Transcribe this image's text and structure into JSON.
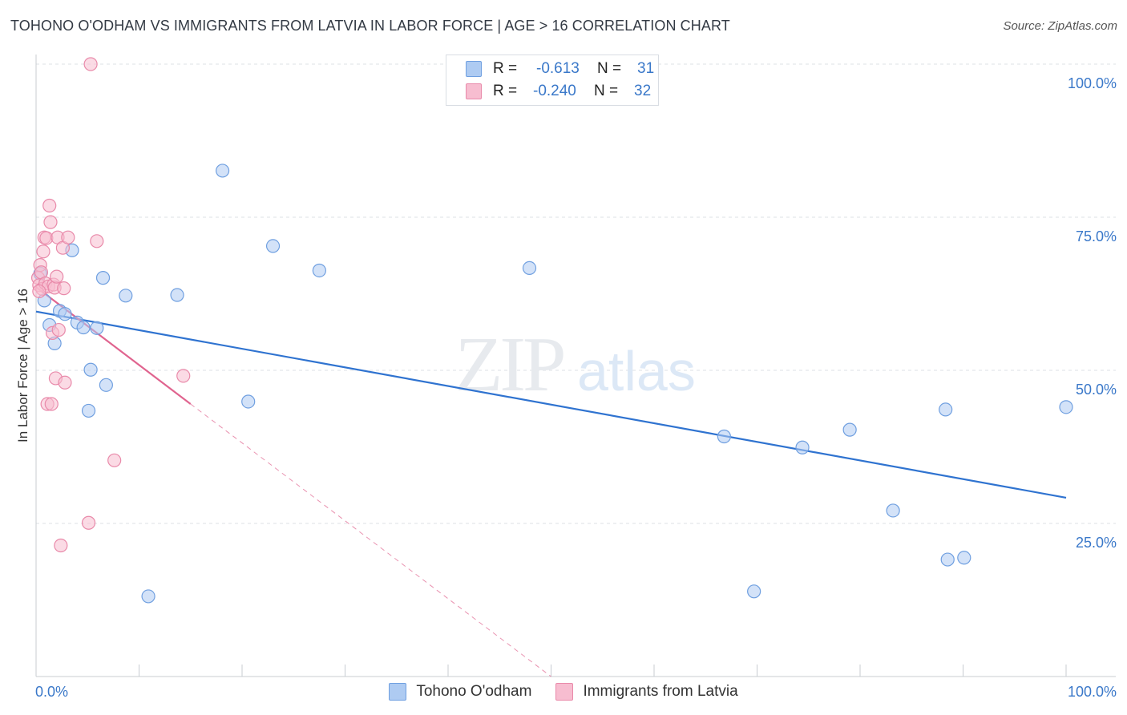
{
  "header": {
    "title": "TOHONO O'ODHAM VS IMMIGRANTS FROM LATVIA IN LABOR FORCE | AGE > 16 CORRELATION CHART",
    "source": "Source: ZipAtlas.com"
  },
  "legend": {
    "r_label": "R =",
    "n_label": "N =",
    "rows": [
      {
        "r": "-0.613",
        "n": "31"
      },
      {
        "r": "-0.240",
        "n": "32"
      }
    ]
  },
  "watermark": {
    "zip": "ZIP",
    "atlas": "atlas"
  },
  "colors": {
    "blue_fill": "#aecbf2",
    "blue_stroke": "#6f9fe0",
    "blue_line": "#2f73d0",
    "pink_fill": "#f7bdd0",
    "pink_stroke": "#e98aaa",
    "pink_line": "#e0648f",
    "grid": "#dde1e6",
    "axis_text": "#3a78c9"
  },
  "chart_data": {
    "type": "scatter",
    "title": "TOHONO O'ODHAM VS IMMIGRANTS FROM LATVIA IN LABOR FORCE | AGE > 16 CORRELATION CHART",
    "xlabel": "",
    "ylabel": "In Labor Force | Age > 16",
    "xlim": [
      0,
      100
    ],
    "ylim": [
      0,
      102
    ],
    "x_tick_labels": [
      {
        "value": 0,
        "label": "0.0%"
      },
      {
        "value": 100,
        "label": "100.0%"
      }
    ],
    "y_tick_labels": [
      {
        "value": 25,
        "label": "25.0%"
      },
      {
        "value": 50,
        "label": "50.0%"
      },
      {
        "value": 75,
        "label": "75.0%"
      },
      {
        "value": 100,
        "label": "100.0%"
      }
    ],
    "grid": true,
    "series": [
      {
        "name": "Tohono O'odham",
        "color": "#aecbf2",
        "trend": {
          "x": [
            0,
            100
          ],
          "y": [
            59.6,
            29.2
          ],
          "style": "solid"
        },
        "points": [
          [
            0.8,
            61.4
          ],
          [
            1.3,
            57.4
          ],
          [
            1.8,
            54.4
          ],
          [
            2.3,
            59.7
          ],
          [
            2.8,
            59.2
          ],
          [
            3.5,
            69.6
          ],
          [
            4.0,
            57.8
          ],
          [
            4.6,
            57.0
          ],
          [
            5.1,
            43.4
          ],
          [
            5.3,
            50.1
          ],
          [
            5.9,
            56.9
          ],
          [
            6.5,
            65.1
          ],
          [
            6.8,
            47.6
          ],
          [
            8.7,
            62.2
          ],
          [
            10.9,
            13.1
          ],
          [
            13.7,
            62.3
          ],
          [
            18.1,
            82.6
          ],
          [
            20.6,
            44.9
          ],
          [
            23.0,
            70.3
          ],
          [
            27.5,
            66.3
          ],
          [
            47.9,
            66.7
          ],
          [
            66.8,
            39.2
          ],
          [
            69.7,
            13.9
          ],
          [
            74.4,
            37.4
          ],
          [
            79.0,
            40.3
          ],
          [
            83.2,
            27.1
          ],
          [
            88.3,
            43.6
          ],
          [
            88.5,
            19.1
          ],
          [
            90.1,
            19.4
          ],
          [
            100.0,
            44.0
          ],
          [
            0.4,
            65.8
          ]
        ]
      },
      {
        "name": "Immigrants from Latvia",
        "color": "#f7bdd0",
        "trend": {
          "x": [
            0,
            15
          ],
          "y": [
            63.6,
            44.5
          ],
          "dashed_to": [
            50.0,
            0
          ],
          "style": "solid-then-dashed"
        },
        "points": [
          [
            0.2,
            65.1
          ],
          [
            0.3,
            63.9
          ],
          [
            0.4,
            67.2
          ],
          [
            0.5,
            66.0
          ],
          [
            0.6,
            63.3
          ],
          [
            0.7,
            69.4
          ],
          [
            0.8,
            71.7
          ],
          [
            0.9,
            64.2
          ],
          [
            1.0,
            71.6
          ],
          [
            1.1,
            44.5
          ],
          [
            1.2,
            63.7
          ],
          [
            1.3,
            76.9
          ],
          [
            1.4,
            74.2
          ],
          [
            1.5,
            44.5
          ],
          [
            1.6,
            56.1
          ],
          [
            1.7,
            64.0
          ],
          [
            1.8,
            63.5
          ],
          [
            1.9,
            48.7
          ],
          [
            2.0,
            65.3
          ],
          [
            2.1,
            71.7
          ],
          [
            2.2,
            56.6
          ],
          [
            2.4,
            21.4
          ],
          [
            2.6,
            70.0
          ],
          [
            2.7,
            63.4
          ],
          [
            2.8,
            48.0
          ],
          [
            3.1,
            71.7
          ],
          [
            5.1,
            25.1
          ],
          [
            5.3,
            100.0
          ],
          [
            5.9,
            71.1
          ],
          [
            7.6,
            35.3
          ],
          [
            14.3,
            49.1
          ],
          [
            0.3,
            62.9
          ]
        ]
      }
    ]
  },
  "bottom_legend": [
    {
      "label": "Tohono O'odham"
    },
    {
      "label": "Immigrants from Latvia"
    }
  ]
}
